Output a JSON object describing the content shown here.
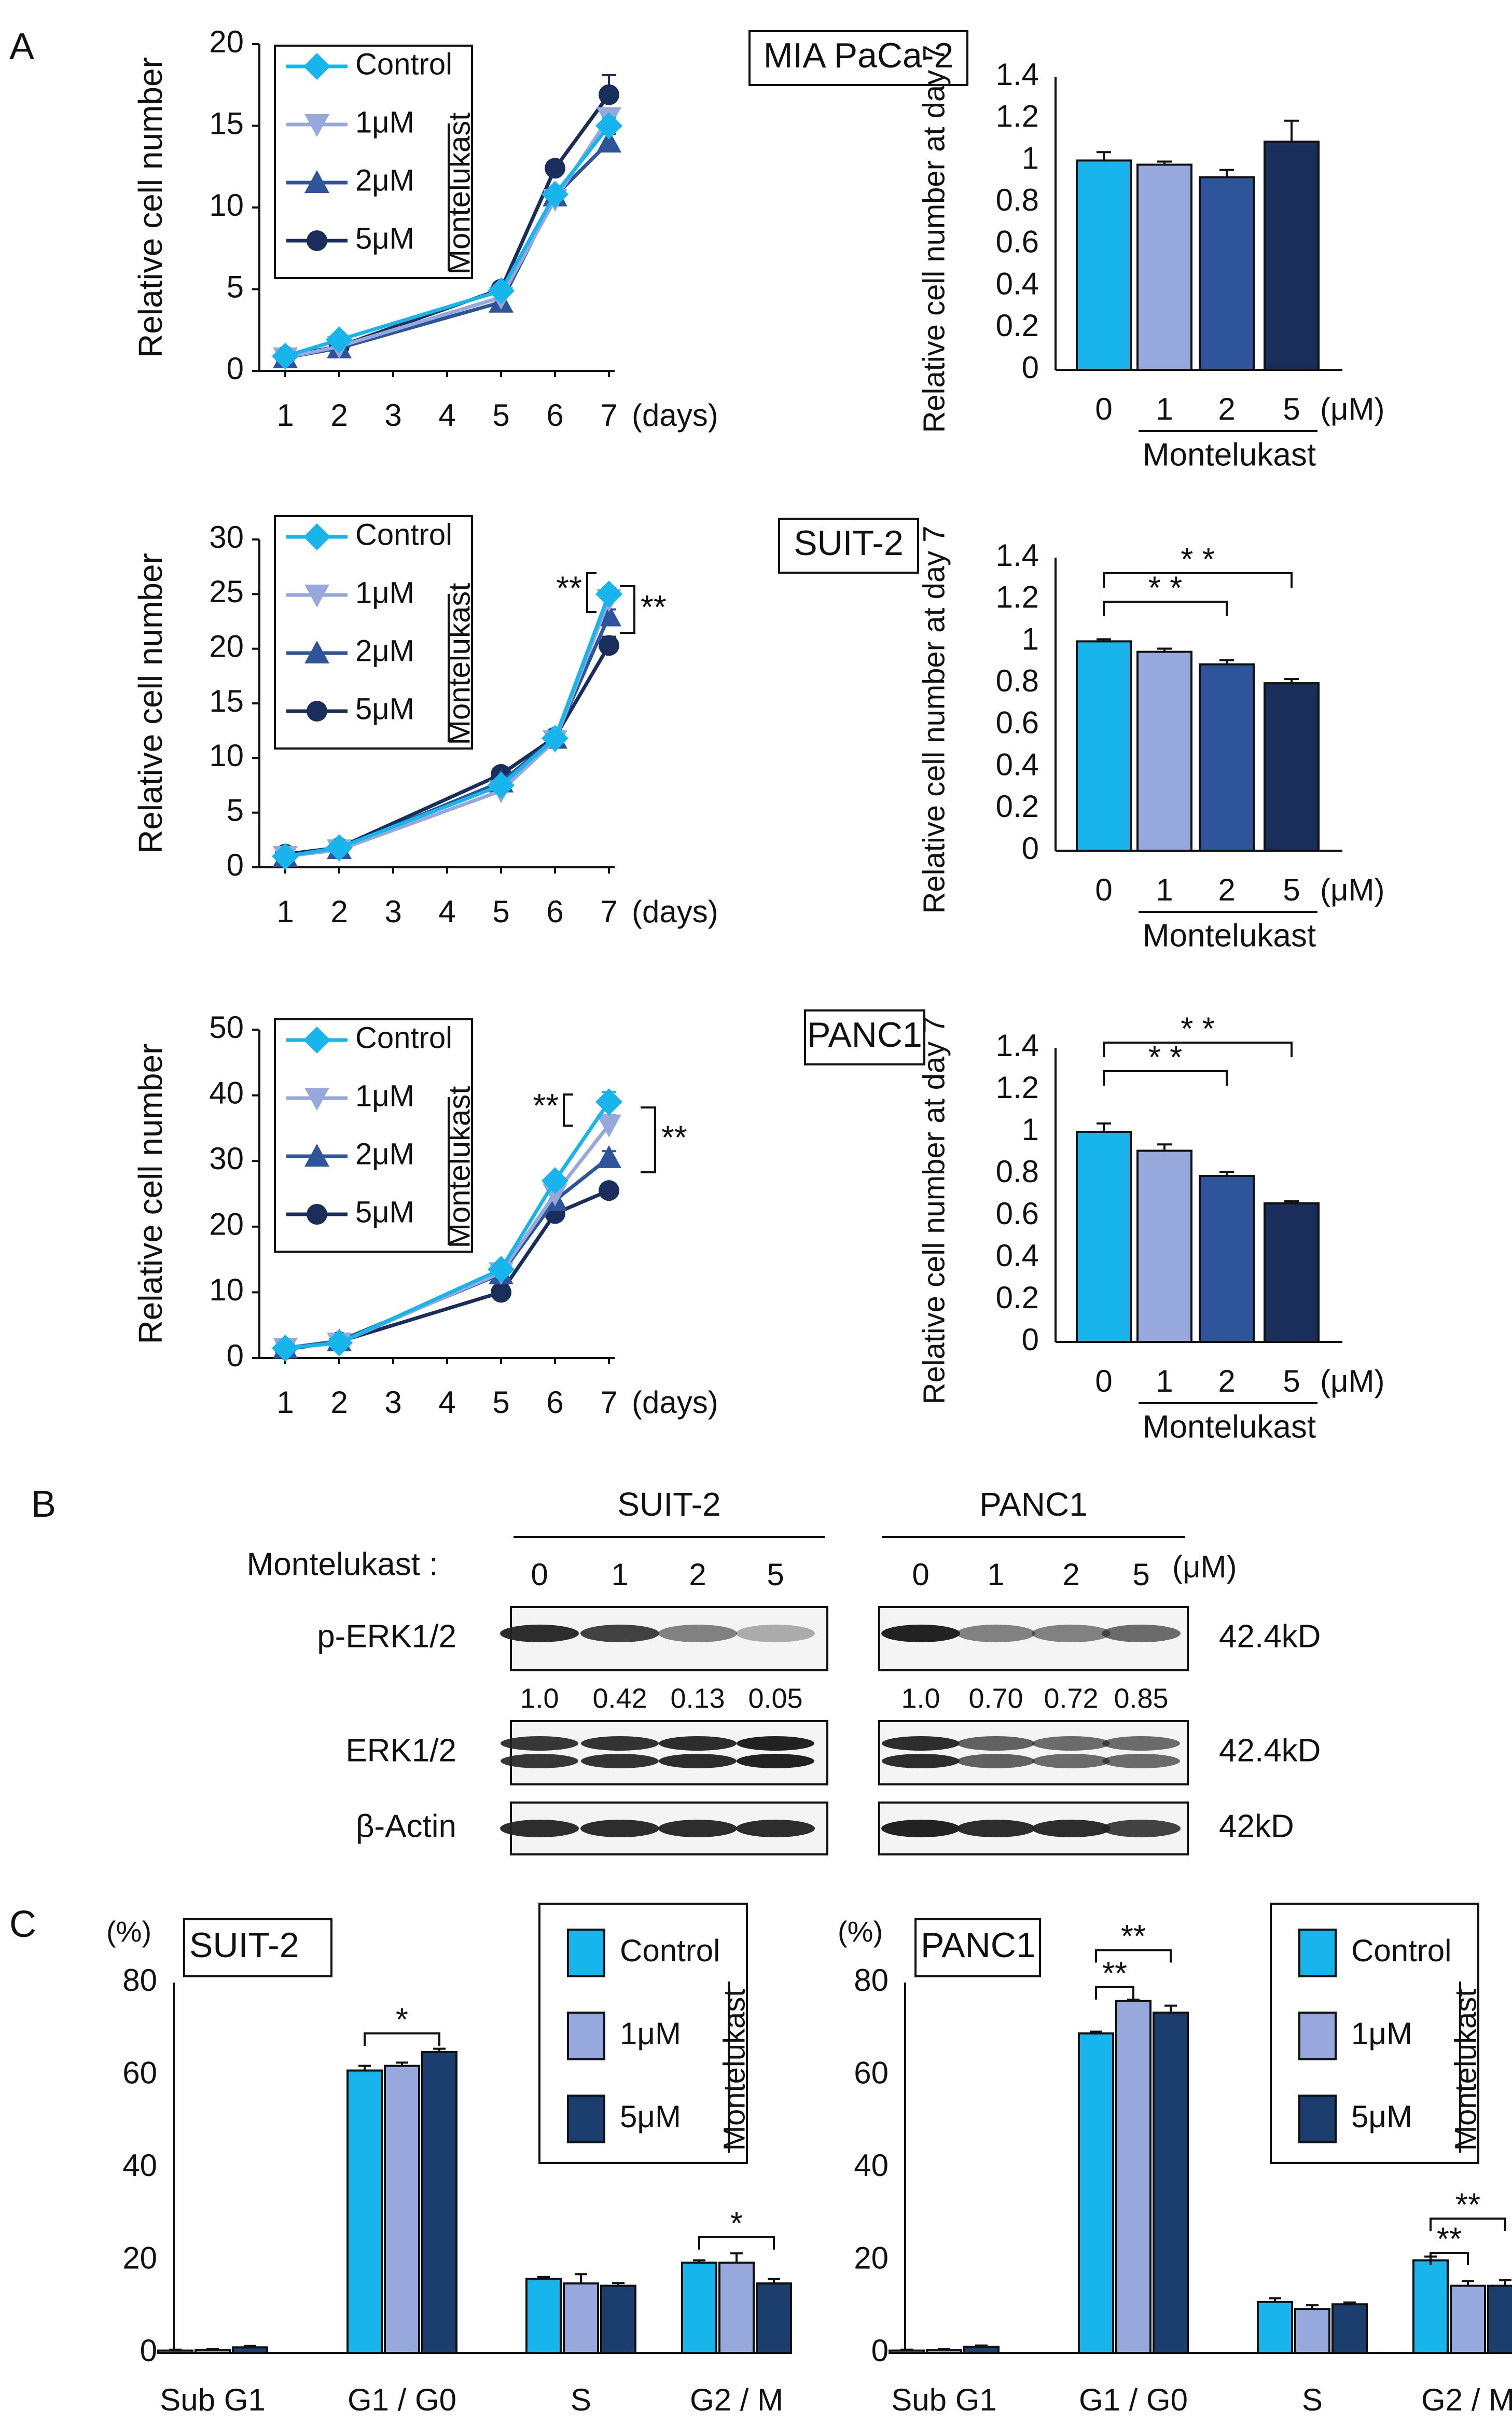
{
  "colors": {
    "control": "#18B4EC",
    "c1uM": "#97A9DC",
    "c2uM": "#2E5499",
    "c5uM": "#1A2E5C",
    "c5uM_bar": "#1B3E6E"
  },
  "panelA": {
    "label": "A",
    "line_x_label": "(days)",
    "line_y_label": "Relative  cell number",
    "bar_y_label": "Relative cell number at day 7",
    "bar_unit": "(μM)",
    "drug": "Montelukast"
  },
  "panelB": {
    "label": "B",
    "treatment_label": "Montelukast :",
    "unit": "(μM)",
    "groups": [
      {
        "name": "SUIT-2",
        "doses": [
          "0",
          "1",
          "2",
          "5"
        ],
        "quant": [
          "1.0",
          "0.42",
          "0.13",
          "0.05"
        ]
      },
      {
        "name": "PANC1",
        "doses": [
          "0",
          "1",
          "2",
          "5"
        ],
        "quant": [
          "1.0",
          "0.70",
          "0.72",
          "0.85"
        ]
      }
    ],
    "rows": [
      {
        "name": "p-ERK1/2",
        "kd": "42.4kD"
      },
      {
        "name": "ERK1/2",
        "kd": "42.4kD"
      },
      {
        "name": "β-Actin",
        "kd": "42kD"
      }
    ]
  },
  "panelC": {
    "label": "C",
    "percent_label": "(%)",
    "drug": "Montelukast"
  },
  "chart_data": [
    {
      "id": "A-line-MIA",
      "type": "line",
      "title": "MIA PaCa-2",
      "xlabel": "(days)",
      "ylabel": "Relative  cell number",
      "x": [
        1,
        2,
        3,
        4,
        5,
        6,
        7
      ],
      "ylim": [
        0,
        20
      ],
      "yticks": [
        0,
        5,
        10,
        15,
        20
      ],
      "series": [
        {
          "name": "Control",
          "marker": "diamond",
          "color": "control",
          "points": [
            [
              1,
              0.9
            ],
            [
              2,
              1.9
            ],
            [
              5,
              4.9
            ],
            [
              6,
              10.8
            ],
            [
              7,
              15.0
            ]
          ],
          "err_last": 0.5
        },
        {
          "name": "1μM",
          "marker": "tri-down",
          "color": "c1uM",
          "points": [
            [
              1,
              0.8
            ],
            [
              2,
              1.5
            ],
            [
              5,
              4.5
            ],
            [
              6,
              10.5
            ],
            [
              7,
              15.5
            ]
          ],
          "err_last": 0.5
        },
        {
          "name": "2μM",
          "marker": "tri-up",
          "color": "c2uM",
          "points": [
            [
              1,
              0.8
            ],
            [
              2,
              1.4
            ],
            [
              5,
              4.2
            ],
            [
              6,
              10.7
            ],
            [
              7,
              14.0
            ]
          ],
          "err_last": 0.5
        },
        {
          "name": "5μM",
          "marker": "circle",
          "color": "c5uM",
          "points": [
            [
              1,
              0.9
            ],
            [
              2,
              1.5
            ],
            [
              5,
              5.0
            ],
            [
              6,
              12.4
            ],
            [
              7,
              16.9
            ]
          ],
          "err_last": 1.2
        }
      ],
      "legend_drug": "Montelukast",
      "sig": []
    },
    {
      "id": "A-bar-MIA",
      "type": "bar",
      "ylabel": "Relative cell number at day 7",
      "categories": [
        "0",
        "1",
        "2",
        "5"
      ],
      "unit": "(μM)",
      "group_label": "Montelukast",
      "values": [
        1.0,
        0.98,
        0.92,
        1.09
      ],
      "errors": [
        0.04,
        0.015,
        0.035,
        0.1
      ],
      "ylim": [
        0,
        1.4
      ],
      "yticks": [
        "0",
        "0.2",
        "0.4",
        "0.6",
        "0.8",
        "1",
        "1.2",
        "1.4"
      ],
      "sig": []
    },
    {
      "id": "A-line-SUIT2",
      "type": "line",
      "title": "SUIT-2",
      "xlabel": "(days)",
      "ylabel": "Relative  cell number",
      "x": [
        1,
        2,
        3,
        4,
        5,
        6,
        7
      ],
      "ylim": [
        0,
        30
      ],
      "yticks": [
        0,
        5,
        10,
        15,
        20,
        25,
        30
      ],
      "series": [
        {
          "name": "Control",
          "marker": "diamond",
          "color": "control",
          "points": [
            [
              1,
              1.0
            ],
            [
              2,
              1.8
            ],
            [
              5,
              7.5
            ],
            [
              6,
              11.8
            ],
            [
              7,
              25.0
            ]
          ],
          "err_last": 0.6
        },
        {
          "name": "1μM",
          "marker": "tri-down",
          "color": "c1uM",
          "points": [
            [
              1,
              1.0
            ],
            [
              2,
              1.6
            ],
            [
              5,
              7.0
            ],
            [
              6,
              11.6
            ],
            [
              7,
              24.5
            ]
          ],
          "err_last": 0.6
        },
        {
          "name": "2μM",
          "marker": "tri-up",
          "color": "c2uM",
          "points": [
            [
              1,
              1.0
            ],
            [
              2,
              1.7
            ],
            [
              5,
              7.8
            ],
            [
              6,
              11.8
            ],
            [
              7,
              23.0
            ]
          ],
          "err_last": 0.6
        },
        {
          "name": "5μM",
          "marker": "circle",
          "color": "c5uM",
          "points": [
            [
              1,
              1.2
            ],
            [
              2,
              1.8
            ],
            [
              5,
              8.5
            ],
            [
              6,
              11.9
            ],
            [
              7,
              20.3
            ]
          ],
          "err_last": 0.8
        }
      ],
      "legend_drug": "Montelukast",
      "sig": [
        "**",
        "**"
      ]
    },
    {
      "id": "A-bar-SUIT2",
      "type": "bar",
      "ylabel": "Relative cell number at day 7",
      "categories": [
        "0",
        "1",
        "2",
        "5"
      ],
      "unit": "(μM)",
      "group_label": "Montelukast",
      "values": [
        1.0,
        0.95,
        0.89,
        0.8
      ],
      "errors": [
        0.01,
        0.015,
        0.02,
        0.02
      ],
      "ylim": [
        0,
        1.4
      ],
      "yticks": [
        "0",
        "0.2",
        "0.4",
        "0.6",
        "0.8",
        "1",
        "1.2",
        "1.4"
      ],
      "sig": [
        "* *",
        "* *"
      ]
    },
    {
      "id": "A-line-PANC1",
      "type": "line",
      "title": "PANC1",
      "xlabel": "(days)",
      "ylabel": "Relative  cell number",
      "x": [
        1,
        2,
        3,
        4,
        5,
        6,
        7
      ],
      "ylim": [
        0,
        50
      ],
      "yticks": [
        0,
        10,
        20,
        30,
        40,
        50
      ],
      "series": [
        {
          "name": "Control",
          "marker": "diamond",
          "color": "control",
          "points": [
            [
              1,
              1.5
            ],
            [
              2,
              2.3
            ],
            [
              5,
              13.5
            ],
            [
              6,
              27.0
            ],
            [
              7,
              39.0
            ]
          ],
          "err_last": 1.5
        },
        {
          "name": "1μM",
          "marker": "tri-down",
          "color": "c1uM",
          "points": [
            [
              1,
              1.5
            ],
            [
              2,
              2.3
            ],
            [
              5,
              13.0
            ],
            [
              6,
              25.0
            ],
            [
              7,
              35.5
            ]
          ],
          "err_last": 1.5
        },
        {
          "name": "2μM",
          "marker": "tri-up",
          "color": "c2uM",
          "points": [
            [
              1,
              1.5
            ],
            [
              2,
              2.6
            ],
            [
              5,
              12.8
            ],
            [
              6,
              24.0
            ],
            [
              7,
              30.5
            ]
          ],
          "err_last": 1.0
        },
        {
          "name": "5μM",
          "marker": "circle",
          "color": "c5uM",
          "points": [
            [
              1,
              1.3
            ],
            [
              2,
              2.5
            ],
            [
              5,
              10.0
            ],
            [
              6,
              22.0
            ],
            [
              7,
              25.5
            ]
          ],
          "err_last": 0.8
        }
      ],
      "legend_drug": "Montelukast",
      "sig": [
        "**",
        "**"
      ]
    },
    {
      "id": "A-bar-PANC1",
      "type": "bar",
      "ylabel": "Relative cell number at day 7",
      "categories": [
        "0",
        "1",
        "2",
        "5"
      ],
      "unit": "(μM)",
      "group_label": "Montelukast",
      "values": [
        1.0,
        0.91,
        0.79,
        0.66
      ],
      "errors": [
        0.04,
        0.03,
        0.02,
        0.01
      ],
      "ylim": [
        0,
        1.4
      ],
      "yticks": [
        "0",
        "0.2",
        "0.4",
        "0.6",
        "0.8",
        "1",
        "1.2",
        "1.4"
      ],
      "sig": [
        "* *",
        "* *"
      ]
    },
    {
      "id": "C-SUIT2",
      "type": "bar",
      "title": "SUIT-2",
      "ylabel": "(%)",
      "categories": [
        "Sub G1",
        "G1 / G0",
        "S",
        "G2 / M"
      ],
      "series": [
        {
          "name": "Control",
          "color": "control",
          "values": [
            0.5,
            61,
            16,
            19.5
          ],
          "errors": [
            0.2,
            1.0,
            0.4,
            0.5
          ]
        },
        {
          "name": "1μM",
          "color": "c1uM",
          "values": [
            0.6,
            62,
            15,
            19.5
          ],
          "errors": [
            0.2,
            0.7,
            2.0,
            2.0
          ]
        },
        {
          "name": "5μM",
          "color": "c5uM_bar",
          "values": [
            1.2,
            65,
            14.5,
            15
          ],
          "errors": [
            0.3,
            0.7,
            0.6,
            1.0
          ]
        }
      ],
      "ylim": [
        0,
        80
      ],
      "yticks": [
        "0",
        "20",
        "40",
        "60",
        "80"
      ],
      "sig": [
        "*",
        "*"
      ],
      "legend_drug": "Montelukast"
    },
    {
      "id": "C-PANC1",
      "type": "bar",
      "title": "PANC1",
      "ylabel": "(%)",
      "categories": [
        "Sub G1",
        "G1 / G0",
        "S",
        "G2 / M"
      ],
      "series": [
        {
          "name": "Control",
          "color": "control",
          "values": [
            0.5,
            69,
            11,
            20
          ],
          "errors": [
            0.2,
            0.4,
            0.8,
            0.8
          ]
        },
        {
          "name": "1μM",
          "color": "c1uM",
          "values": [
            0.6,
            76,
            9.5,
            14.5
          ],
          "errors": [
            0.2,
            0.3,
            0.8,
            1.0
          ]
        },
        {
          "name": "5μM",
          "color": "c5uM_bar",
          "values": [
            1.3,
            73.5,
            10.5,
            14.5
          ],
          "errors": [
            0.3,
            1.5,
            0.4,
            1.2
          ]
        }
      ],
      "ylim": [
        0,
        80
      ],
      "yticks": [
        "0",
        "20",
        "40",
        "60",
        "80"
      ],
      "sig": [
        "**",
        "**",
        "**",
        "**"
      ],
      "legend_drug": "Montelukast"
    }
  ]
}
